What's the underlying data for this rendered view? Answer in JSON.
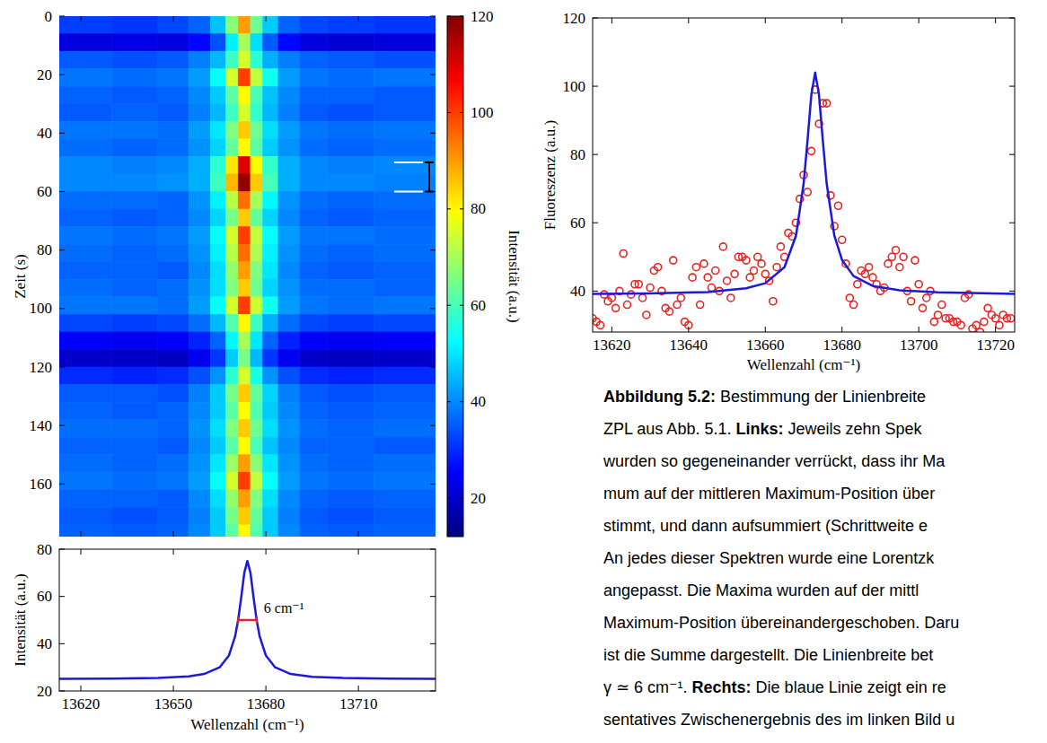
{
  "chart_data": [
    {
      "type": "heatmap",
      "y_label": "Zeit (s)",
      "xlim": [
        13613,
        13735
      ],
      "xticks": [
        13620,
        13650,
        13680,
        13710
      ],
      "ylim": [
        0,
        178
      ],
      "yticks": [
        0,
        20,
        40,
        60,
        80,
        100,
        120,
        140,
        160
      ],
      "tick_labels": "y",
      "x_bins": [
        13613,
        13630,
        13645,
        13655,
        13662,
        13667,
        13671,
        13675,
        13679,
        13684,
        13691,
        13700,
        13715,
        13735
      ],
      "y_bins": [
        0,
        6,
        12,
        18,
        24,
        30,
        36,
        42,
        48,
        54,
        60,
        66,
        72,
        78,
        84,
        90,
        96,
        102,
        108,
        114,
        120,
        126,
        132,
        138,
        144,
        150,
        156,
        162,
        168,
        174,
        180
      ],
      "cells": [
        [
          32,
          31,
          33,
          36,
          46,
          67,
          90,
          64,
          47,
          36,
          33,
          32,
          31
        ],
        [
          22,
          23,
          22,
          26,
          34,
          51,
          70,
          49,
          35,
          26,
          22,
          21,
          22
        ],
        [
          35,
          34,
          35,
          39,
          45,
          59,
          75,
          57,
          44,
          39,
          36,
          35,
          34
        ],
        [
          38,
          37,
          38,
          42,
          53,
          75,
          100,
          73,
          54,
          42,
          38,
          37,
          38
        ],
        [
          36,
          35,
          36,
          40,
          47,
          62,
          80,
          60,
          46,
          40,
          36,
          36,
          35
        ],
        [
          35,
          36,
          35,
          39,
          45,
          59,
          75,
          58,
          45,
          39,
          35,
          34,
          35
        ],
        [
          38,
          38,
          37,
          42,
          50,
          66,
          85,
          64,
          49,
          42,
          38,
          37,
          38
        ],
        [
          37,
          36,
          37,
          41,
          48,
          63,
          80,
          62,
          47,
          41,
          37,
          36,
          37
        ],
        [
          40,
          39,
          40,
          44,
          57,
          82,
          110,
          80,
          58,
          44,
          40,
          39,
          40
        ],
        [
          40,
          40,
          41,
          44,
          59,
          87,
          118,
          85,
          60,
          44,
          40,
          40,
          39
        ],
        [
          37,
          37,
          36,
          41,
          51,
          72,
          95,
          70,
          52,
          41,
          37,
          36,
          37
        ],
        [
          36,
          35,
          36,
          40,
          48,
          65,
          85,
          63,
          48,
          40,
          36,
          35,
          36
        ],
        [
          38,
          37,
          38,
          42,
          53,
          75,
          100,
          73,
          53,
          42,
          38,
          38,
          37
        ],
        [
          37,
          36,
          37,
          41,
          51,
          72,
          95,
          71,
          51,
          41,
          37,
          36,
          37
        ],
        [
          36,
          36,
          35,
          40,
          49,
          68,
          90,
          66,
          50,
          40,
          36,
          35,
          36
        ],
        [
          37,
          36,
          37,
          41,
          49,
          66,
          85,
          64,
          48,
          41,
          37,
          37,
          36
        ],
        [
          38,
          38,
          37,
          42,
          53,
          75,
          100,
          74,
          54,
          42,
          38,
          37,
          38
        ],
        [
          33,
          32,
          33,
          37,
          45,
          61,
          80,
          59,
          44,
          37,
          33,
          32,
          33
        ],
        [
          25,
          24,
          25,
          29,
          36,
          52,
          70,
          50,
          36,
          29,
          25,
          24,
          25
        ],
        [
          20,
          20,
          19,
          24,
          31,
          47,
          65,
          45,
          31,
          24,
          20,
          19,
          20
        ],
        [
          30,
          29,
          30,
          34,
          41,
          57,
          75,
          55,
          41,
          34,
          30,
          29,
          30
        ],
        [
          35,
          35,
          34,
          39,
          47,
          65,
          85,
          63,
          48,
          39,
          35,
          34,
          35
        ],
        [
          36,
          35,
          36,
          40,
          47,
          62,
          80,
          61,
          47,
          40,
          36,
          35,
          36
        ],
        [
          37,
          37,
          36,
          41,
          49,
          66,
          85,
          64,
          49,
          41,
          37,
          36,
          37
        ],
        [
          36,
          36,
          35,
          40,
          47,
          62,
          80,
          60,
          46,
          40,
          36,
          36,
          35
        ],
        [
          37,
          36,
          37,
          41,
          50,
          69,
          90,
          67,
          50,
          41,
          37,
          36,
          37
        ],
        [
          38,
          37,
          38,
          42,
          53,
          75,
          100,
          73,
          53,
          42,
          38,
          37,
          38
        ],
        [
          36,
          36,
          35,
          40,
          49,
          68,
          90,
          66,
          49,
          40,
          36,
          35,
          36
        ],
        [
          35,
          34,
          35,
          39,
          47,
          65,
          85,
          63,
          47,
          39,
          35,
          34,
          35
        ],
        [
          36,
          35,
          36,
          40,
          47,
          62,
          80,
          61,
          47,
          40,
          36,
          35,
          36
        ]
      ],
      "colorbar": {
        "label": "Intensität (a.u.)",
        "range": [
          12,
          120
        ],
        "ticks": [
          20,
          40,
          60,
          80,
          100,
          120
        ]
      },
      "marked_interval": [
        50,
        60
      ]
    },
    {
      "type": "line",
      "x_label": "Wellenzahl (cm⁻¹)",
      "y_label": "Intensität (a.u.)",
      "xlim": [
        13613,
        13735
      ],
      "xticks": [
        13620,
        13650,
        13680,
        13710
      ],
      "ylim": [
        20,
        80
      ],
      "yticks": [
        20,
        40,
        60,
        80
      ],
      "x": [
        13613,
        13630,
        13645,
        13655,
        13660,
        13665,
        13668,
        13670,
        13671,
        13672,
        13673,
        13674,
        13675,
        13676,
        13677,
        13678,
        13680,
        13683,
        13688,
        13695,
        13705,
        13720,
        13735
      ],
      "series": [
        {
          "color": "#1a1adb",
          "values": [
            25.1,
            25.2,
            25.5,
            26.2,
            27.2,
            30.0,
            35.0,
            43.0,
            50.0,
            59.6,
            70.0,
            75.0,
            70.0,
            59.6,
            50.0,
            43.0,
            35.0,
            30.0,
            27.2,
            26.0,
            25.5,
            25.2,
            25.1
          ]
        }
      ],
      "annotation": {
        "text": "6 cm⁻¹",
        "x_range": [
          13671,
          13677
        ],
        "y": 50,
        "color": "#e32222"
      }
    },
    {
      "type": "scatter",
      "x_label": "Wellenzahl (cm⁻¹)",
      "y_label": "Fluoreszenz (a.u.)",
      "xlim": [
        13615,
        13725
      ],
      "xticks": [
        13620,
        13640,
        13660,
        13680,
        13700,
        13720
      ],
      "ylim": [
        28,
        120
      ],
      "yticks": [
        40,
        60,
        80,
        100,
        120
      ],
      "series": [
        {
          "type": "scatter",
          "marker": "circle",
          "color": "#e8231f",
          "x": [
            13615,
            13616,
            13617,
            13618,
            13619,
            13620,
            13621,
            13622,
            13623,
            13624,
            13625,
            13626,
            13627,
            13628,
            13629,
            13630,
            13631,
            13632,
            13633,
            13634,
            13635,
            13636,
            13637,
            13638,
            13639,
            13640,
            13641,
            13642,
            13643,
            13644,
            13645,
            13646,
            13647,
            13648,
            13649,
            13650,
            13651,
            13652,
            13653,
            13654,
            13655,
            13656,
            13657,
            13658,
            13659,
            13660,
            13661,
            13662,
            13663,
            13664,
            13665,
            13666,
            13667,
            13668,
            13669,
            13670,
            13671,
            13672,
            13673,
            13674,
            13675,
            13676,
            13677,
            13678,
            13679,
            13680,
            13681,
            13682,
            13683,
            13684,
            13685,
            13686,
            13687,
            13688,
            13689,
            13690,
            13691,
            13692,
            13693,
            13694,
            13695,
            13696,
            13697,
            13698,
            13699,
            13700,
            13701,
            13702,
            13703,
            13704,
            13705,
            13706,
            13707,
            13708,
            13709,
            13710,
            13711,
            13712,
            13713,
            13714,
            13715,
            13716,
            13717,
            13718,
            13719,
            13720,
            13721,
            13722,
            13723,
            13724
          ],
          "values": [
            32,
            31,
            30,
            39,
            37,
            38,
            35,
            40,
            51,
            36,
            39,
            42,
            42,
            38,
            33,
            41,
            46,
            47,
            40,
            35,
            34,
            49,
            36,
            38,
            31,
            30,
            44,
            47,
            36,
            48,
            44,
            41,
            46,
            40,
            53,
            43,
            38,
            45,
            50,
            50,
            49,
            44,
            46,
            50,
            48,
            45,
            43,
            37,
            47,
            53,
            50,
            57,
            56,
            60,
            67,
            74,
            69,
            81,
            99,
            89,
            95,
            95,
            68,
            59,
            65,
            55,
            48,
            38,
            36,
            42,
            46,
            45,
            47,
            44,
            42,
            40,
            41,
            48,
            50,
            52,
            47,
            50,
            40,
            37,
            49,
            42,
            35,
            38,
            40,
            31,
            33,
            36,
            32,
            32,
            31,
            31,
            30,
            38,
            39,
            29,
            30,
            28,
            31,
            35,
            33,
            32,
            30,
            33,
            32,
            32
          ]
        },
        {
          "type": "line",
          "color": "#1a1adb",
          "x": [
            13615,
            13630,
            13645,
            13655,
            13660,
            13665,
            13668,
            13670,
            13671,
            13672,
            13673,
            13674,
            13675,
            13676,
            13678,
            13680,
            13683,
            13688,
            13695,
            13705,
            13725
          ],
          "values": [
            39.2,
            39.3,
            39.7,
            40.8,
            42.3,
            47.0,
            56.2,
            71.5,
            84.0,
            97.5,
            104.0,
            97.5,
            84.0,
            71.5,
            56.2,
            49.1,
            44.4,
            41.5,
            40.2,
            39.6,
            39.2
          ]
        }
      ]
    }
  ],
  "caption": {
    "lines": [
      [
        {
          "text": "Abbildung 5.2:",
          "bold": true
        },
        {
          "text": " Bestimmung der Linienbreite",
          "bold": false
        }
      ],
      [
        {
          "text": "ZPL aus Abb. 5.1. ",
          "bold": false
        },
        {
          "text": "Links:",
          "bold": true
        },
        {
          "text": " Jeweils zehn Spek",
          "bold": false
        }
      ],
      [
        {
          "text": "wurden so gegeneinander verrückt, dass ihr Ma",
          "bold": false
        }
      ],
      [
        {
          "text": "mum auf der mittleren Maximum-Position über",
          "bold": false
        }
      ],
      [
        {
          "text": "stimmt, und dann aufsummiert (Schrittweite e",
          "bold": false
        }
      ],
      [
        {
          "text": "An jedes dieser Spektren wurde eine Lorentzk",
          "bold": false
        }
      ],
      [
        {
          "text": "angepasst. Die Maxima wurden auf der mittl",
          "bold": false
        }
      ],
      [
        {
          "text": "Maximum-Position übereinandergeschoben. Daru",
          "bold": false
        }
      ],
      [
        {
          "text": "ist die Summe dargestellt. Die Linienbreite bet",
          "bold": false
        }
      ],
      [
        {
          "text": "γ ≃ 6 cm⁻¹. ",
          "bold": false
        },
        {
          "text": "Rechts:",
          "bold": true
        },
        {
          "text": " Die blaue Linie zeigt ein re",
          "bold": false
        }
      ],
      [
        {
          "text": "sentatives Zwischenergebnis des im linken Bild u",
          "bold": false
        }
      ]
    ]
  }
}
